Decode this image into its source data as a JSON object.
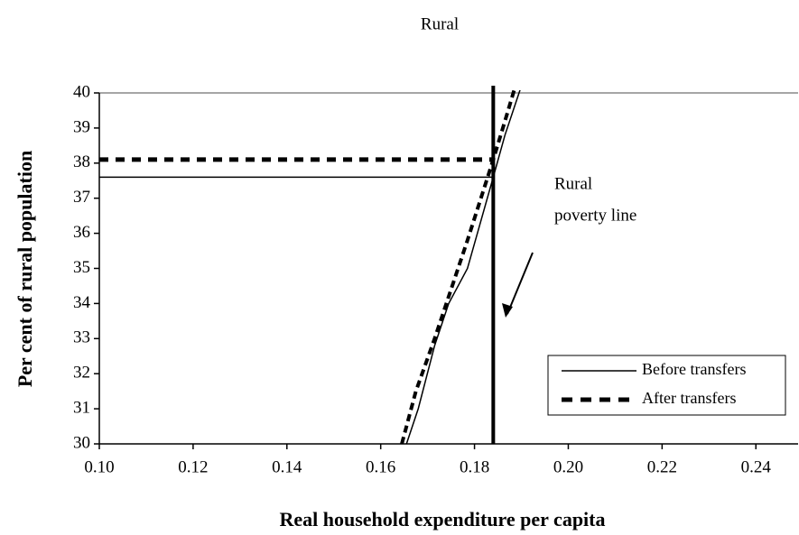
{
  "chart_data": {
    "type": "line",
    "title": "Rural",
    "x_label": "Real household expenditure per capita",
    "y_label": "Per cent of rural population",
    "xlim": [
      0.1,
      0.249
    ],
    "ylim": [
      30,
      40
    ],
    "xticks": [
      {
        "value": 0.1,
        "label": "0.10"
      },
      {
        "value": 0.12,
        "label": "0.12"
      },
      {
        "value": 0.14,
        "label": "0.14"
      },
      {
        "value": 0.16,
        "label": "0.16"
      },
      {
        "value": 0.18,
        "label": "0.18"
      },
      {
        "value": 0.2,
        "label": "0.20"
      },
      {
        "value": 0.22,
        "label": "0.22"
      },
      {
        "value": 0.24,
        "label": "0.24"
      }
    ],
    "yticks": [
      30,
      31,
      32,
      33,
      34,
      35,
      36,
      37,
      38,
      39,
      40
    ],
    "series": [
      {
        "name": "Before transfers",
        "color": "#000000",
        "dash": false,
        "x": [
          0.1655,
          0.168,
          0.1715,
          0.1745,
          0.1785,
          0.184,
          0.1865,
          0.19
        ],
        "values": [
          30,
          31,
          32.8,
          34,
          35,
          37.6,
          38.8,
          40.2
        ],
        "level": 37.6
      },
      {
        "name": "After transfers",
        "color": "#000000",
        "dash": true,
        "x": [
          0.1645,
          0.1675,
          0.1715,
          0.1745,
          0.1785,
          0.184,
          0.1865,
          0.1885
        ],
        "values": [
          30,
          31.5,
          33,
          34.2,
          35.8,
          38.1,
          39.2,
          40.1
        ],
        "level": 38.1
      }
    ],
    "poverty_line": 0.184,
    "annotation": [
      "Rural",
      "poverty line"
    ],
    "legend": "lower right"
  }
}
